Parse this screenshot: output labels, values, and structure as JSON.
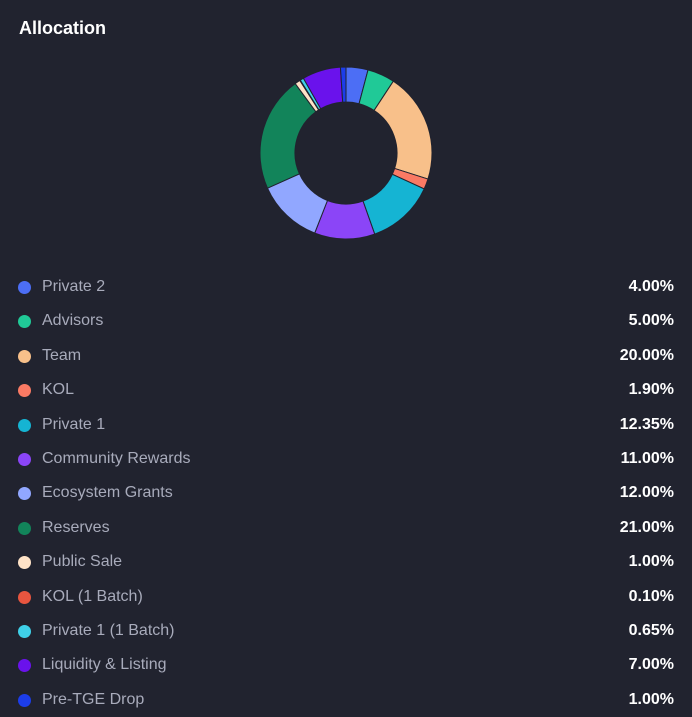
{
  "header": {
    "title": "Allocation"
  },
  "chart_data": {
    "type": "pie",
    "donut": true,
    "title": "Allocation",
    "legend_position": "bottom",
    "unit": "%",
    "categories": [
      "Private 2",
      "Advisors",
      "Team",
      "KOL",
      "Private 1",
      "Community Rewards",
      "Ecosystem Grants",
      "Reserves",
      "Public Sale",
      "KOL (1 Batch)",
      "Private 1 (1 Batch)",
      "Liquidity & Listing",
      "Pre-TGE Drop"
    ],
    "values": [
      4.0,
      5.0,
      20.0,
      1.9,
      12.35,
      11.0,
      12.0,
      21.0,
      1.0,
      0.1,
      0.65,
      7.0,
      1.0
    ],
    "value_labels": [
      "4.00%",
      "5.00%",
      "20.00%",
      "1.90%",
      "12.35%",
      "11.00%",
      "12.00%",
      "21.00%",
      "1.00%",
      "0.10%",
      "0.65%",
      "7.00%",
      "1.00%"
    ],
    "colors": [
      "#4c6ef5",
      "#20c997",
      "#f8c08a",
      "#fa7a64",
      "#15b4d3",
      "#8b45f7",
      "#91a7ff",
      "#12845a",
      "#ffe3c7",
      "#e8553f",
      "#3fd0e8",
      "#6a12ec",
      "#1c3dea"
    ]
  }
}
